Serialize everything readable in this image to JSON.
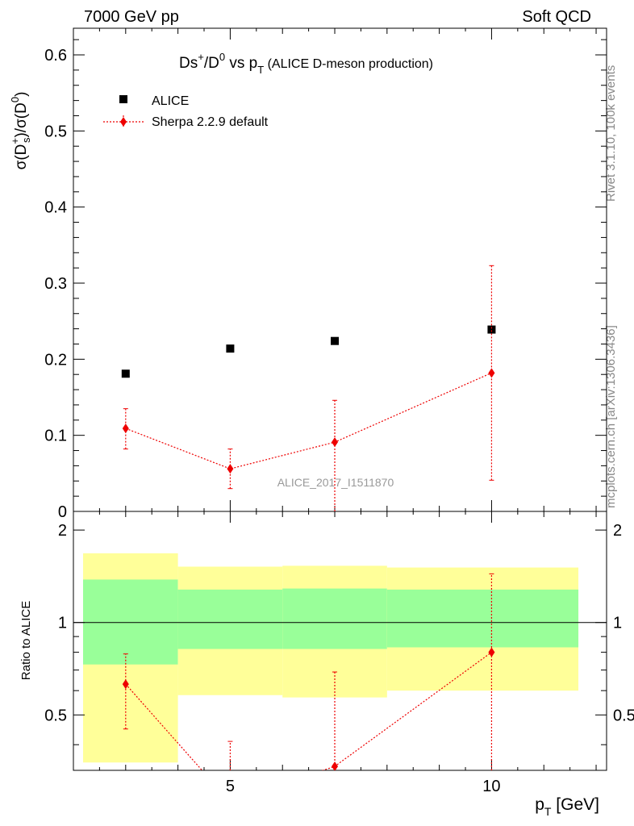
{
  "header": {
    "left": "7000 GeV pp",
    "right": "Soft QCD"
  },
  "side_labels": {
    "rivet": "Rivet 3.1.10,  100k events",
    "mcplots": "mcplots.cern.ch [arXiv:1306.3436]"
  },
  "plot_title": {
    "main": "Ds",
    "sup1": "+",
    "mid": "/D",
    "sup2": "0",
    "vs": " vs p",
    "sub": "T",
    "suffix": " (ALICE D-meson production)"
  },
  "ylabel": {
    "text": "σ(D",
    "sup1": "+",
    "sub1": "s",
    "mid": ")/σ(D",
    "sup2": "0",
    "end": ")"
  },
  "ratio_ylabel": "Ratio to ALICE",
  "xlabel": {
    "main": "p",
    "sub": "T",
    "unit": " [GeV]"
  },
  "watermark": "ALICE_2017_I1511870",
  "legend": [
    {
      "name": "ALICE",
      "color": "#000000",
      "marker": "square"
    },
    {
      "name": "Sherpa 2.2.9 default",
      "color": "#ee0000",
      "marker": "diamond"
    }
  ],
  "chart_data": {
    "type": "scatter",
    "x_range": [
      2,
      12.2
    ],
    "y_range": [
      0,
      0.635
    ],
    "ratio_y_range": [
      0.33,
      2.3
    ],
    "x_ticks": [
      "5",
      "10"
    ],
    "y_ticks": [
      "0",
      "0.1",
      "0.2",
      "0.3",
      "0.4",
      "0.5",
      "0.6"
    ],
    "ratio_y_ticks": [
      "0.5",
      "1",
      "2"
    ],
    "bins": [
      {
        "xlo": 2,
        "xhi": 4,
        "x": 3
      },
      {
        "xlo": 4,
        "xhi": 6,
        "x": 5
      },
      {
        "xlo": 6,
        "xhi": 8,
        "x": 7
      },
      {
        "xlo": 8,
        "xhi": 12,
        "x": 10
      }
    ],
    "series": [
      {
        "name": "ALICE",
        "x": [
          3,
          5,
          7,
          10
        ],
        "y": [
          0.181,
          0.214,
          0.224,
          0.239
        ]
      },
      {
        "name": "Sherpa 2.2.9 default",
        "x": [
          3,
          5,
          7,
          10
        ],
        "y": [
          0.109,
          0.056,
          0.091,
          0.182
        ],
        "err_lo": [
          0.027,
          0.026,
          0.091,
          0.141
        ],
        "err_hi": [
          0.026,
          0.026,
          0.055,
          0.141
        ]
      }
    ],
    "ratio": {
      "band_yellow": [
        [
          0.35,
          1.68
        ],
        [
          0.58,
          1.52
        ],
        [
          0.57,
          1.53
        ],
        [
          0.6,
          1.51
        ]
      ],
      "band_green": [
        [
          0.73,
          1.38
        ],
        [
          0.82,
          1.28
        ],
        [
          0.82,
          1.29
        ],
        [
          0.83,
          1.28
        ]
      ],
      "sherpa": {
        "x": [
          3,
          5,
          7,
          10
        ],
        "y": [
          0.63,
          0.26,
          0.34,
          0.8
        ],
        "err_lo": [
          0.18,
          0.15,
          0.34,
          0.66
        ],
        "err_hi": [
          0.16,
          0.15,
          0.35,
          0.64
        ]
      }
    }
  }
}
